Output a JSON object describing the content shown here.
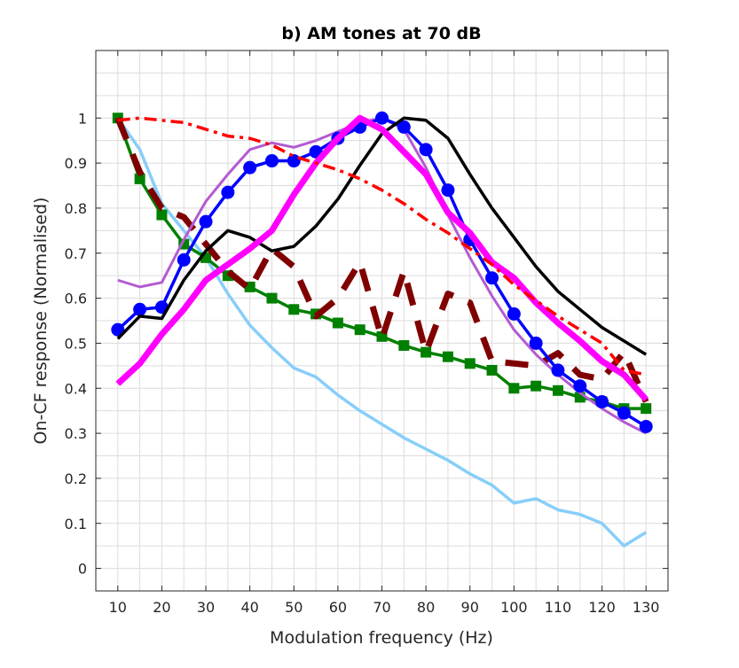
{
  "chart_data": {
    "type": "line",
    "title": "b) AM tones at 70 dB",
    "xlabel": "Modulation frequency (Hz)",
    "ylabel": "On-CF response (Normalised)",
    "xlim": [
      5,
      135
    ],
    "ylim": [
      -0.05,
      1.15
    ],
    "grid": true,
    "xticks": [
      10,
      20,
      30,
      40,
      50,
      60,
      70,
      80,
      90,
      100,
      110,
      120,
      130
    ],
    "yticks": [
      0,
      0.1,
      0.2,
      0.3,
      0.4,
      0.5,
      0.6,
      0.7,
      0.8,
      0.9,
      1
    ],
    "x": [
      10,
      15,
      20,
      25,
      30,
      35,
      40,
      45,
      50,
      55,
      60,
      65,
      70,
      75,
      80,
      85,
      90,
      95,
      100,
      105,
      110,
      115,
      120,
      125,
      130
    ],
    "series": [
      {
        "color": "#87cefa",
        "style": "solid",
        "marker": "none",
        "values": [
          1.0,
          0.93,
          0.81,
          0.75,
          0.69,
          0.61,
          0.54,
          0.49,
          0.445,
          0.425,
          0.385,
          0.35,
          0.32,
          0.29,
          0.265,
          0.24,
          0.21,
          0.185,
          0.145,
          0.155,
          0.13,
          0.12,
          0.1,
          0.05,
          0.08
        ]
      },
      {
        "color": "#008000",
        "style": "solid",
        "marker": "square",
        "values": [
          1.0,
          0.865,
          0.785,
          0.72,
          0.69,
          0.65,
          0.625,
          0.6,
          0.575,
          0.565,
          0.545,
          0.53,
          0.515,
          0.495,
          0.48,
          0.47,
          0.455,
          0.44,
          0.4,
          0.405,
          0.395,
          0.38,
          0.37,
          0.355,
          0.355
        ]
      },
      {
        "color": "#800000",
        "style": "dashed",
        "marker": "none",
        "values": [
          1.0,
          0.88,
          0.8,
          0.78,
          0.72,
          0.66,
          0.62,
          0.71,
          0.67,
          0.56,
          0.6,
          0.68,
          0.51,
          0.66,
          0.48,
          0.61,
          0.59,
          0.46,
          0.455,
          0.45,
          0.478,
          0.43,
          0.42,
          0.48,
          0.37
        ]
      },
      {
        "color": "#b45ad2",
        "style": "solid",
        "marker": "none",
        "values": [
          0.64,
          0.625,
          0.635,
          0.73,
          0.815,
          0.875,
          0.93,
          0.945,
          0.935,
          0.95,
          0.97,
          0.99,
          1.0,
          0.975,
          0.89,
          0.785,
          0.69,
          0.605,
          0.53,
          0.475,
          0.43,
          0.39,
          0.355,
          0.325,
          0.3
        ]
      },
      {
        "color": "#0000ff",
        "style": "solid",
        "marker": "circle",
        "values": [
          0.53,
          0.575,
          0.58,
          0.685,
          0.77,
          0.835,
          0.89,
          0.905,
          0.905,
          0.925,
          0.955,
          0.98,
          1.0,
          0.98,
          0.93,
          0.84,
          0.73,
          0.645,
          0.565,
          0.5,
          0.44,
          0.405,
          0.37,
          0.345,
          0.315
        ]
      },
      {
        "color": "#000000",
        "style": "solid",
        "marker": "none",
        "values": [
          0.51,
          0.56,
          0.555,
          0.64,
          0.705,
          0.75,
          0.735,
          0.705,
          0.715,
          0.76,
          0.82,
          0.895,
          0.965,
          1.0,
          0.995,
          0.955,
          0.875,
          0.8,
          0.735,
          0.67,
          0.615,
          0.575,
          0.535,
          0.505,
          0.475
        ]
      },
      {
        "color": "#ff00ff",
        "style": "solid-thick",
        "marker": "none",
        "values": [
          0.41,
          0.455,
          0.52,
          0.575,
          0.64,
          0.675,
          0.71,
          0.75,
          0.83,
          0.9,
          0.955,
          1.0,
          0.975,
          0.925,
          0.875,
          0.79,
          0.745,
          0.68,
          0.645,
          0.59,
          0.545,
          0.505,
          0.46,
          0.43,
          0.375
        ]
      },
      {
        "color": "#ff0000",
        "style": "dashdot",
        "marker": "none",
        "values": [
          0.995,
          1.0,
          0.995,
          0.99,
          0.975,
          0.96,
          0.955,
          0.94,
          0.915,
          0.9,
          0.885,
          0.865,
          0.84,
          0.81,
          0.775,
          0.745,
          0.71,
          0.675,
          0.63,
          0.595,
          0.56,
          0.53,
          0.5,
          0.44,
          0.43
        ]
      }
    ]
  }
}
